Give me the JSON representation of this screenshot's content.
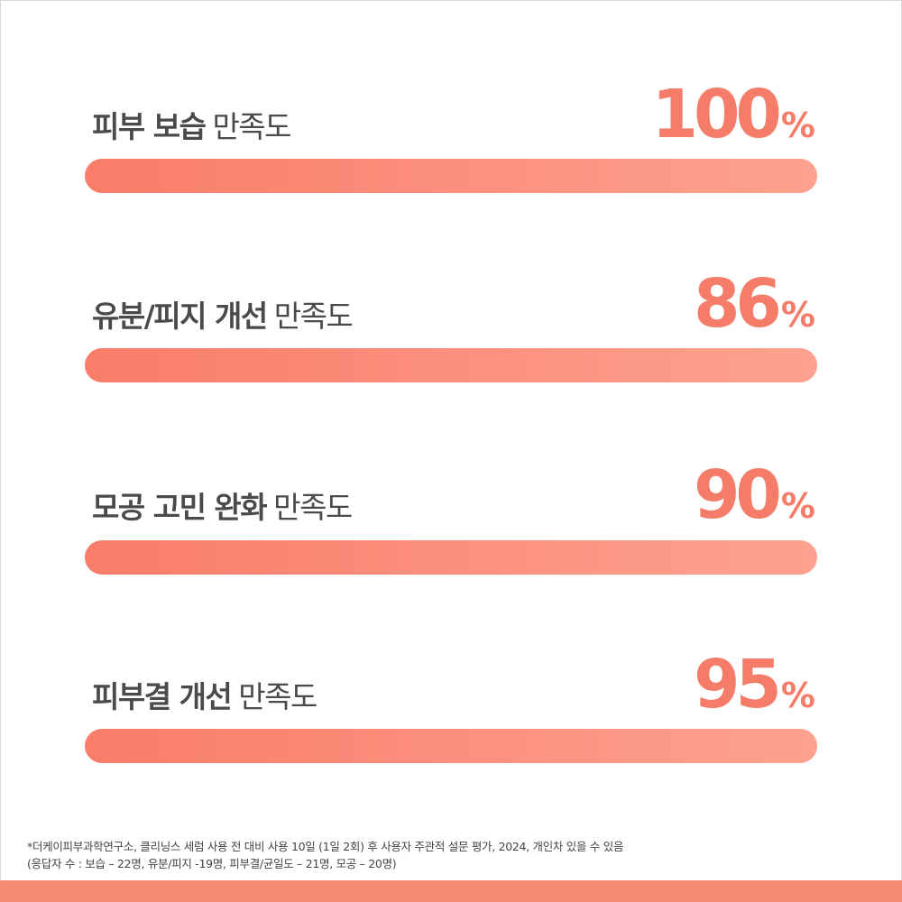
{
  "items": [
    {
      "label_bold": "피부 보습",
      "label_regular": "만족도",
      "value": 100,
      "unit": "%"
    },
    {
      "label_bold": "유분/피지 개선",
      "label_regular": "만족도",
      "value": 86,
      "unit": "%"
    },
    {
      "label_bold": "모공 고민 완화",
      "label_regular": "만족도",
      "value": 90,
      "unit": "%"
    },
    {
      "label_bold": "피부결 개선",
      "label_regular": "만족도",
      "value": 95,
      "unit": "%"
    }
  ],
  "footnote": [
    "*더케이피부과학연구소, 클리닝스 세럼 사용 전 대비 사용 10일 (1일 2회) 후 사용자 주관적 설문 평가, 2024, 개인차 있을 수 있음",
    "(응답자 수 : 보습 – 22명, 유분/피지 -19명, 피부결/균일도 – 21명, 모공 – 20명)"
  ]
}
